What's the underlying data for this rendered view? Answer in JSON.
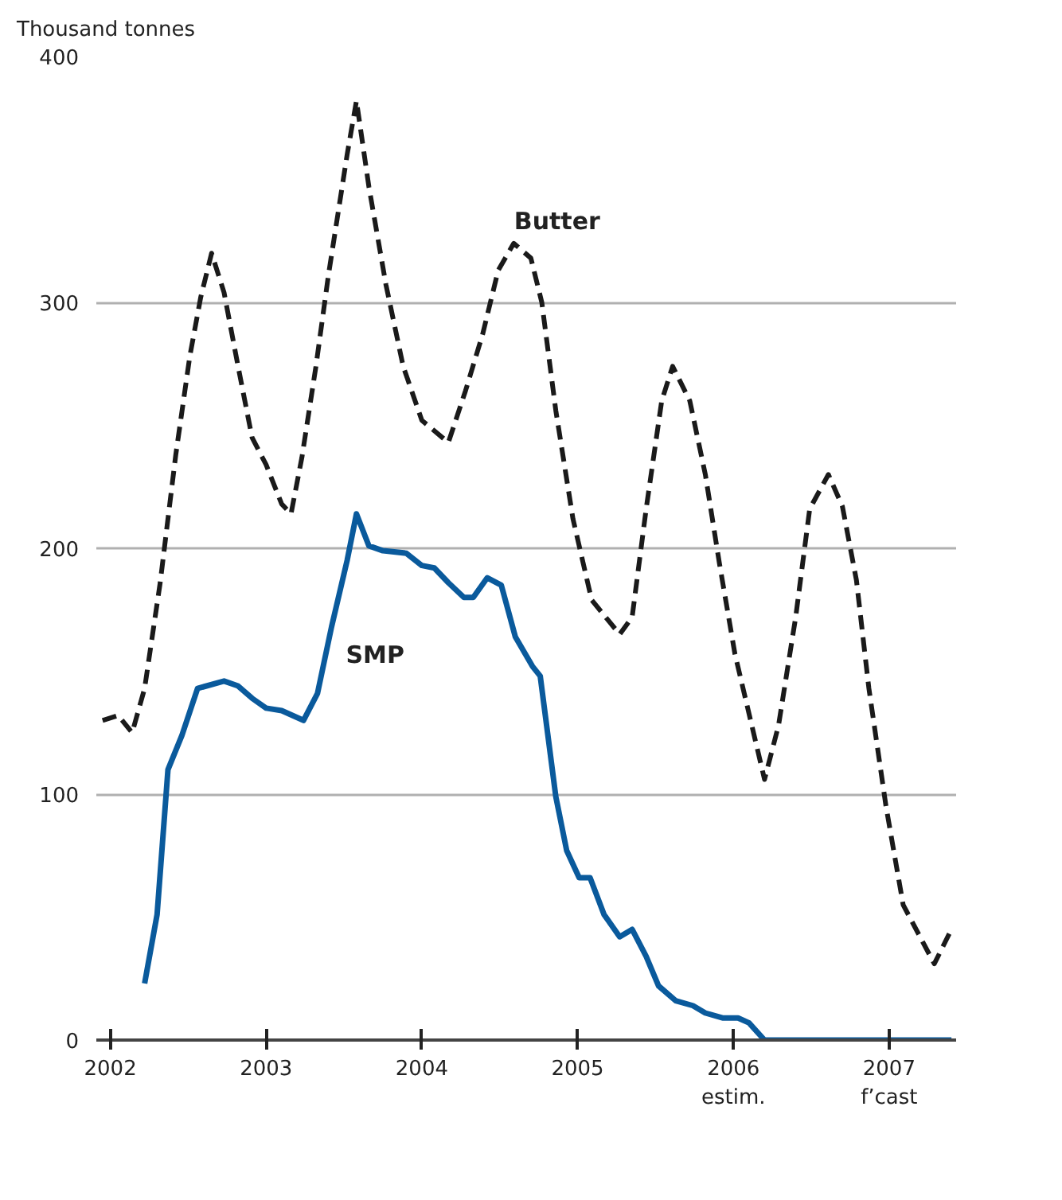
{
  "chart_data": {
    "type": "line",
    "ylabel": "Thousand tonnes",
    "xlim": [
      2001.91,
      2007.43
    ],
    "xticks": [
      2002,
      2003,
      2004,
      2005,
      {
        "value": 2006,
        "label": "2006\nestim."
      },
      {
        "value": 2007,
        "label": "2007\nf’cast"
      }
    ],
    "ylim": [
      0,
      400
    ],
    "yticks": [
      0,
      100,
      200,
      300,
      400
    ],
    "grid": "y",
    "marker": "none",
    "series": [
      {
        "name": "Butter",
        "color": "#1a1a1a",
        "line_style": "dashed",
        "x": [
          2001.95,
          2002.05,
          2002.14,
          2002.22,
          2002.32,
          2002.42,
          2002.51,
          2002.58,
          2002.65,
          2002.73,
          2002.82,
          2002.91,
          2003.0,
          2003.1,
          2003.16,
          2003.23,
          2003.32,
          2003.4,
          2003.52,
          2003.58,
          2003.66,
          2003.77,
          2003.88,
          2004.0,
          2004.17,
          2004.28,
          2004.39,
          2004.49,
          2004.59,
          2004.7,
          2004.77,
          2004.86,
          2004.97,
          2005.09,
          2005.27,
          2005.35,
          2005.44,
          2005.54,
          2005.61,
          2005.72,
          2005.82,
          2005.91,
          2006.01,
          2006.2,
          2006.29,
          2006.4,
          2006.49,
          2006.61,
          2006.7,
          2006.79,
          2006.87,
          2006.98,
          2007.09,
          2007.29,
          2007.4
        ],
        "values": [
          130,
          132,
          125,
          143,
          186,
          238,
          278,
          302,
          320,
          304,
          274,
          245,
          234,
          218,
          214,
          237,
          274,
          311,
          360,
          382,
          347,
          307,
          274,
          252,
          243,
          264,
          287,
          313,
          324,
          318,
          300,
          256,
          212,
          179,
          165,
          172,
          216,
          260,
          274,
          260,
          230,
          194,
          157,
          106,
          128,
          172,
          216,
          230,
          217,
          187,
          143,
          95,
          55,
          31,
          45
        ]
      },
      {
        "name": "SMP",
        "color": "#0a5a9c",
        "line_style": "solid",
        "x": [
          2002.22,
          2002.3,
          2002.37,
          2002.46,
          2002.56,
          2002.73,
          2002.82,
          2002.91,
          2003.0,
          2003.1,
          2003.24,
          2003.33,
          2003.42,
          2003.52,
          2003.58,
          2003.66,
          2003.75,
          2003.9,
          2004.0,
          2004.08,
          2004.17,
          2004.27,
          2004.33,
          2004.42,
          2004.51,
          2004.6,
          2004.71,
          2004.76,
          2004.86,
          2004.93,
          2005.01,
          2005.08,
          2005.17,
          2005.27,
          2005.35,
          2005.44,
          2005.52,
          2005.63,
          2005.74,
          2005.82,
          2005.93,
          2006.03,
          2006.1,
          2006.2,
          2007.4
        ],
        "values": [
          23,
          51,
          110,
          124,
          143,
          146,
          144,
          139,
          135,
          134,
          130,
          141,
          168,
          195,
          214,
          201,
          199,
          198,
          193,
          192,
          186,
          180,
          180,
          188,
          185,
          164,
          152,
          148,
          99,
          77,
          66,
          66,
          51,
          42,
          45,
          34,
          22,
          16,
          14,
          11,
          9,
          9,
          7,
          0,
          0
        ]
      }
    ]
  }
}
